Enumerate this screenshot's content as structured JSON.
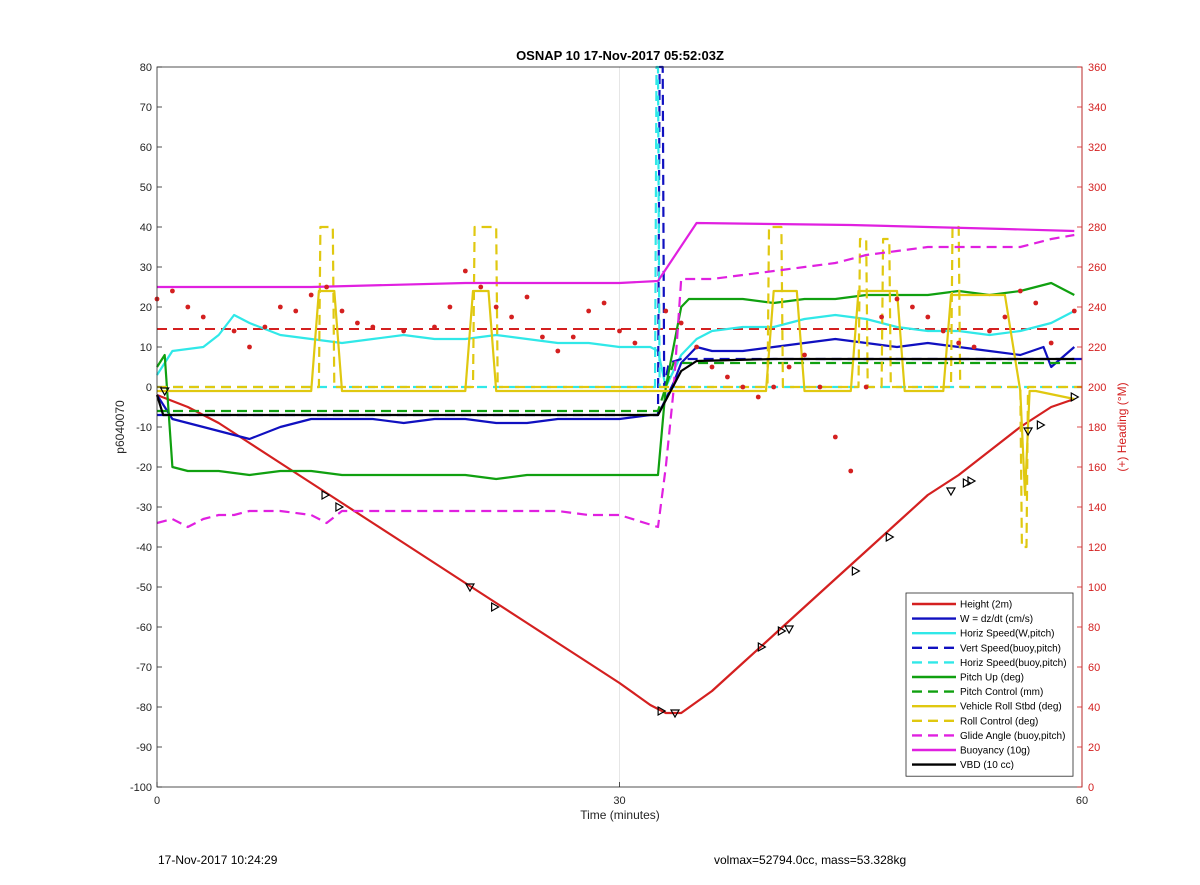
{
  "chart_data": {
    "type": "line",
    "title": "OSNAP 10 17-Nov-2017 05:52:03Z",
    "xlabel": "Time (minutes)",
    "ylabel": "p6040070",
    "y2label": "(+) Heading (°M)",
    "xlim": [
      0,
      60
    ],
    "ylim": [
      -100,
      80
    ],
    "y2lim": [
      0,
      360
    ],
    "xticks": [
      0,
      30,
      60
    ],
    "yticks": [
      -100,
      -90,
      -80,
      -70,
      -60,
      -50,
      -40,
      -30,
      -20,
      -10,
      0,
      10,
      20,
      30,
      40,
      50,
      60,
      70,
      80
    ],
    "y2ticks": [
      0,
      20,
      40,
      60,
      80,
      100,
      120,
      140,
      160,
      180,
      200,
      220,
      240,
      260,
      280,
      300,
      320,
      340,
      360
    ],
    "grid": "vertical at x=30",
    "legend_position": "bottom-right",
    "series": [
      {
        "name": "Height (2m)",
        "color": "#d42020",
        "style": "solid",
        "axis": "left",
        "x": [
          0,
          2,
          4,
          6,
          8,
          10,
          12,
          14,
          16,
          18,
          20,
          22,
          24,
          26,
          28,
          30,
          32,
          33,
          34,
          36,
          38,
          40,
          42,
          44,
          46,
          48,
          50,
          52,
          54,
          56,
          58,
          59.5
        ],
        "y": [
          -2,
          -5,
          -9,
          -14,
          -19,
          -24,
          -29,
          -34,
          -39,
          -44,
          -49,
          -54,
          -59,
          -64,
          -69,
          -74,
          -79.5,
          -81.5,
          -81.5,
          -76,
          -69,
          -62,
          -55,
          -48,
          -41,
          -34,
          -27,
          -22,
          -16,
          -10,
          -5,
          -3
        ]
      },
      {
        "name": "W = dz/dt (cm/s)",
        "color": "#1010c0",
        "style": "solid",
        "axis": "left",
        "x": [
          0,
          1,
          3,
          5,
          6,
          8,
          10,
          12,
          14,
          16,
          18,
          20,
          22,
          24,
          26,
          28,
          30,
          32,
          32.5,
          33.5,
          34,
          35,
          36,
          38,
          40,
          42,
          44,
          46,
          48,
          50,
          52,
          54,
          56,
          57.5,
          58,
          59.5
        ],
        "y": [
          -2,
          -8,
          -10,
          -12,
          -13,
          -10,
          -8,
          -8,
          -8,
          -9,
          -8,
          -8,
          -9,
          -9,
          -8,
          -8,
          -8,
          -7,
          -7,
          1,
          6,
          10,
          9,
          9,
          10,
          11,
          12,
          11,
          10,
          11,
          10,
          9,
          8,
          10,
          5,
          10
        ]
      },
      {
        "name": "Horiz Speed(W,pitch)",
        "color": "#30e8e8",
        "style": "solid",
        "axis": "left",
        "x": [
          0,
          1,
          3,
          4,
          5,
          6,
          8,
          10,
          12,
          14,
          16,
          18,
          20,
          22,
          24,
          26,
          28,
          30,
          32,
          32.5,
          33,
          34,
          35,
          36,
          38,
          40,
          42,
          44,
          46,
          48,
          50,
          52,
          54,
          56,
          58,
          59.5
        ],
        "y": [
          3,
          9,
          10,
          13,
          18,
          16,
          13,
          12,
          11,
          12,
          13,
          12,
          12,
          13,
          12,
          11,
          11,
          10,
          10,
          9,
          0,
          8,
          12,
          14,
          15,
          15,
          17,
          18,
          17,
          15,
          14,
          14,
          13,
          14,
          16,
          19
        ]
      },
      {
        "name": "Vert Speed(buoy,pitch)",
        "color": "#1010c0",
        "style": "dashed",
        "axis": "left",
        "x": [
          0,
          32.5,
          32.6,
          32.7,
          32.8,
          32.9,
          33.2,
          34,
          60
        ],
        "y": [
          -7,
          -7,
          80,
          80,
          80,
          0,
          6,
          7,
          7
        ]
      },
      {
        "name": "Horiz Speed(buoy,pitch)",
        "color": "#30e8e8",
        "style": "dashed",
        "axis": "left",
        "x": [
          0,
          32.3,
          32.4,
          32.5,
          32.6,
          32.8,
          60
        ],
        "y": [
          0,
          0,
          80,
          80,
          0,
          0,
          0
        ]
      },
      {
        "name": "Pitch Up (deg)",
        "color": "#10a010",
        "style": "solid",
        "axis": "left",
        "x": [
          0,
          0.5,
          1,
          2,
          4,
          6,
          8,
          10,
          12,
          14,
          16,
          18,
          20,
          22,
          24,
          26,
          28,
          30,
          32,
          32.5,
          33,
          34,
          34.5,
          36,
          38,
          40,
          42,
          44,
          46,
          48,
          50,
          52,
          54,
          56,
          58,
          59.5
        ],
        "y": [
          5,
          8,
          -20,
          -21,
          -21,
          -22,
          -21,
          -21,
          -22,
          -22,
          -22,
          -22,
          -22,
          -23,
          -22,
          -22,
          -22,
          -22,
          -22,
          -22,
          0,
          20,
          22,
          22,
          22,
          21,
          22,
          22,
          23,
          23,
          23,
          24,
          23,
          24,
          26,
          23
        ]
      },
      {
        "name": "Pitch Control (mm)",
        "color": "#10a010",
        "style": "dashed",
        "axis": "left",
        "x": [
          0,
          32.5,
          33.5,
          60
        ],
        "y": [
          -6,
          -6,
          6,
          6
        ]
      },
      {
        "name": "Vehicle Roll Stbd (deg)",
        "color": "#e0c810",
        "style": "solid",
        "axis": "left",
        "x": [
          0,
          5,
          10,
          10.5,
          11.5,
          12,
          20,
          20.5,
          21.5,
          22,
          30,
          32,
          33,
          35,
          39.5,
          40,
          41.5,
          42,
          45,
          45.5,
          48,
          48.5,
          51,
          51.5,
          55,
          56,
          56.3,
          56.6,
          57,
          59.5
        ],
        "y": [
          -1,
          -1,
          -1,
          24,
          24,
          -1,
          -1,
          24,
          24,
          -1,
          -1,
          -1,
          -1,
          -1,
          -1,
          24,
          24,
          -1,
          -1,
          24,
          24,
          -1,
          -1,
          23,
          23,
          -1,
          -27,
          -1,
          -1,
          -3
        ]
      },
      {
        "name": "Roll Control (deg)",
        "color": "#e0c810",
        "style": "dashed",
        "axis": "left",
        "x": [
          0,
          10.5,
          10.6,
          11.4,
          11.5,
          20.5,
          20.6,
          22,
          22.1,
          39.6,
          39.7,
          40.5,
          40.6,
          45.5,
          45.6,
          46,
          46.1,
          47,
          47.1,
          47.5,
          47.6,
          51.5,
          51.6,
          52,
          52.1,
          56,
          56.1,
          56.4,
          56.5,
          60
        ],
        "y": [
          0,
          0,
          40,
          40,
          0,
          0,
          40,
          40,
          0,
          0,
          40,
          40,
          0,
          0,
          37,
          37,
          0,
          0,
          37,
          37,
          0,
          0,
          40,
          40,
          0,
          0,
          -40,
          -40,
          0,
          0
        ]
      },
      {
        "name": "Glide Angle (buoy,pitch)",
        "color": "#e020e0",
        "style": "dashed",
        "axis": "left",
        "x": [
          0,
          1,
          2,
          3,
          4,
          5,
          6,
          8,
          10,
          11,
          12,
          14,
          16,
          18,
          20,
          22,
          24,
          26,
          28,
          30,
          32.5,
          33,
          33.5,
          34,
          36,
          38,
          40,
          42,
          44,
          46,
          48,
          50,
          52,
          54,
          56,
          58,
          59.5
        ],
        "y": [
          -34,
          -33,
          -35,
          -33,
          -32,
          -32,
          -31,
          -31,
          -32,
          -34,
          -31,
          -31,
          -31,
          -31,
          -31,
          -31,
          -31,
          -31,
          -32,
          -32,
          -35,
          -20,
          -1,
          27,
          27,
          28,
          29,
          30,
          31,
          33,
          34,
          35,
          35,
          35,
          35,
          37,
          38
        ]
      },
      {
        "name": "Buoyancy (10g)",
        "color": "#e020e0",
        "style": "solid",
        "axis": "left",
        "x": [
          0,
          10,
          20,
          30,
          32.5,
          35,
          45,
          55,
          59.5
        ],
        "y": [
          25,
          25,
          26,
          26,
          26.5,
          41,
          40.5,
          39.5,
          39
        ]
      },
      {
        "name": "VBD (10 cc)",
        "color": "#000000",
        "style": "solid",
        "axis": "left",
        "x": [
          0,
          0.4,
          32.5,
          34,
          35,
          40,
          50,
          59.5
        ],
        "y": [
          -2,
          -7,
          -7,
          4,
          6.5,
          7,
          7,
          7
        ]
      },
      {
        "name": "Heading",
        "color": "#d42020",
        "style": "dotted",
        "axis": "right",
        "x": [
          0,
          1,
          2,
          3,
          5,
          6,
          7,
          8,
          9,
          10,
          11,
          12,
          13,
          14,
          16,
          18,
          19,
          20,
          21,
          22,
          23,
          24,
          25,
          26,
          27,
          28,
          29,
          30,
          31,
          33,
          34,
          35,
          36,
          37,
          38,
          39,
          40,
          41,
          42,
          43,
          44,
          45,
          46,
          47,
          48,
          49,
          50,
          51,
          52,
          53,
          54,
          55,
          56,
          57,
          58,
          59.5
        ],
        "y": [
          244,
          248,
          240,
          235,
          228,
          220,
          230,
          240,
          238,
          246,
          250,
          238,
          232,
          230,
          228,
          230,
          240,
          258,
          250,
          240,
          235,
          245,
          225,
          218,
          225,
          238,
          242,
          228,
          222,
          238,
          232,
          220,
          210,
          205,
          200,
          195,
          200,
          210,
          216,
          200,
          175,
          158,
          200,
          235,
          244,
          240,
          235,
          228,
          222,
          220,
          228,
          235,
          248,
          242,
          222,
          238
        ]
      }
    ],
    "threshold_lines": [
      {
        "color": "#d42020",
        "style": "dashed",
        "axis": "right",
        "value": 229
      }
    ],
    "markers": {
      "series": "Height (2m)",
      "x": [
        0.5,
        10.9,
        11.8,
        20.3,
        21.9,
        32.7,
        33.6,
        39.2,
        40.5,
        41,
        45.3,
        47.5,
        51.5,
        52.5,
        52.8,
        56.5,
        57.3,
        59.5
      ],
      "y": [
        -1,
        -27,
        -30,
        -50,
        -55,
        -81,
        -81.5,
        -65,
        -61,
        -60.5,
        -46,
        -37.5,
        -26,
        -24,
        -23.5,
        -11,
        -9.5,
        -2.5
      ]
    }
  },
  "footer": {
    "left": "17-Nov-2017 10:24:29",
    "right": "volmax=52794.0cc, mass=53.328kg"
  }
}
